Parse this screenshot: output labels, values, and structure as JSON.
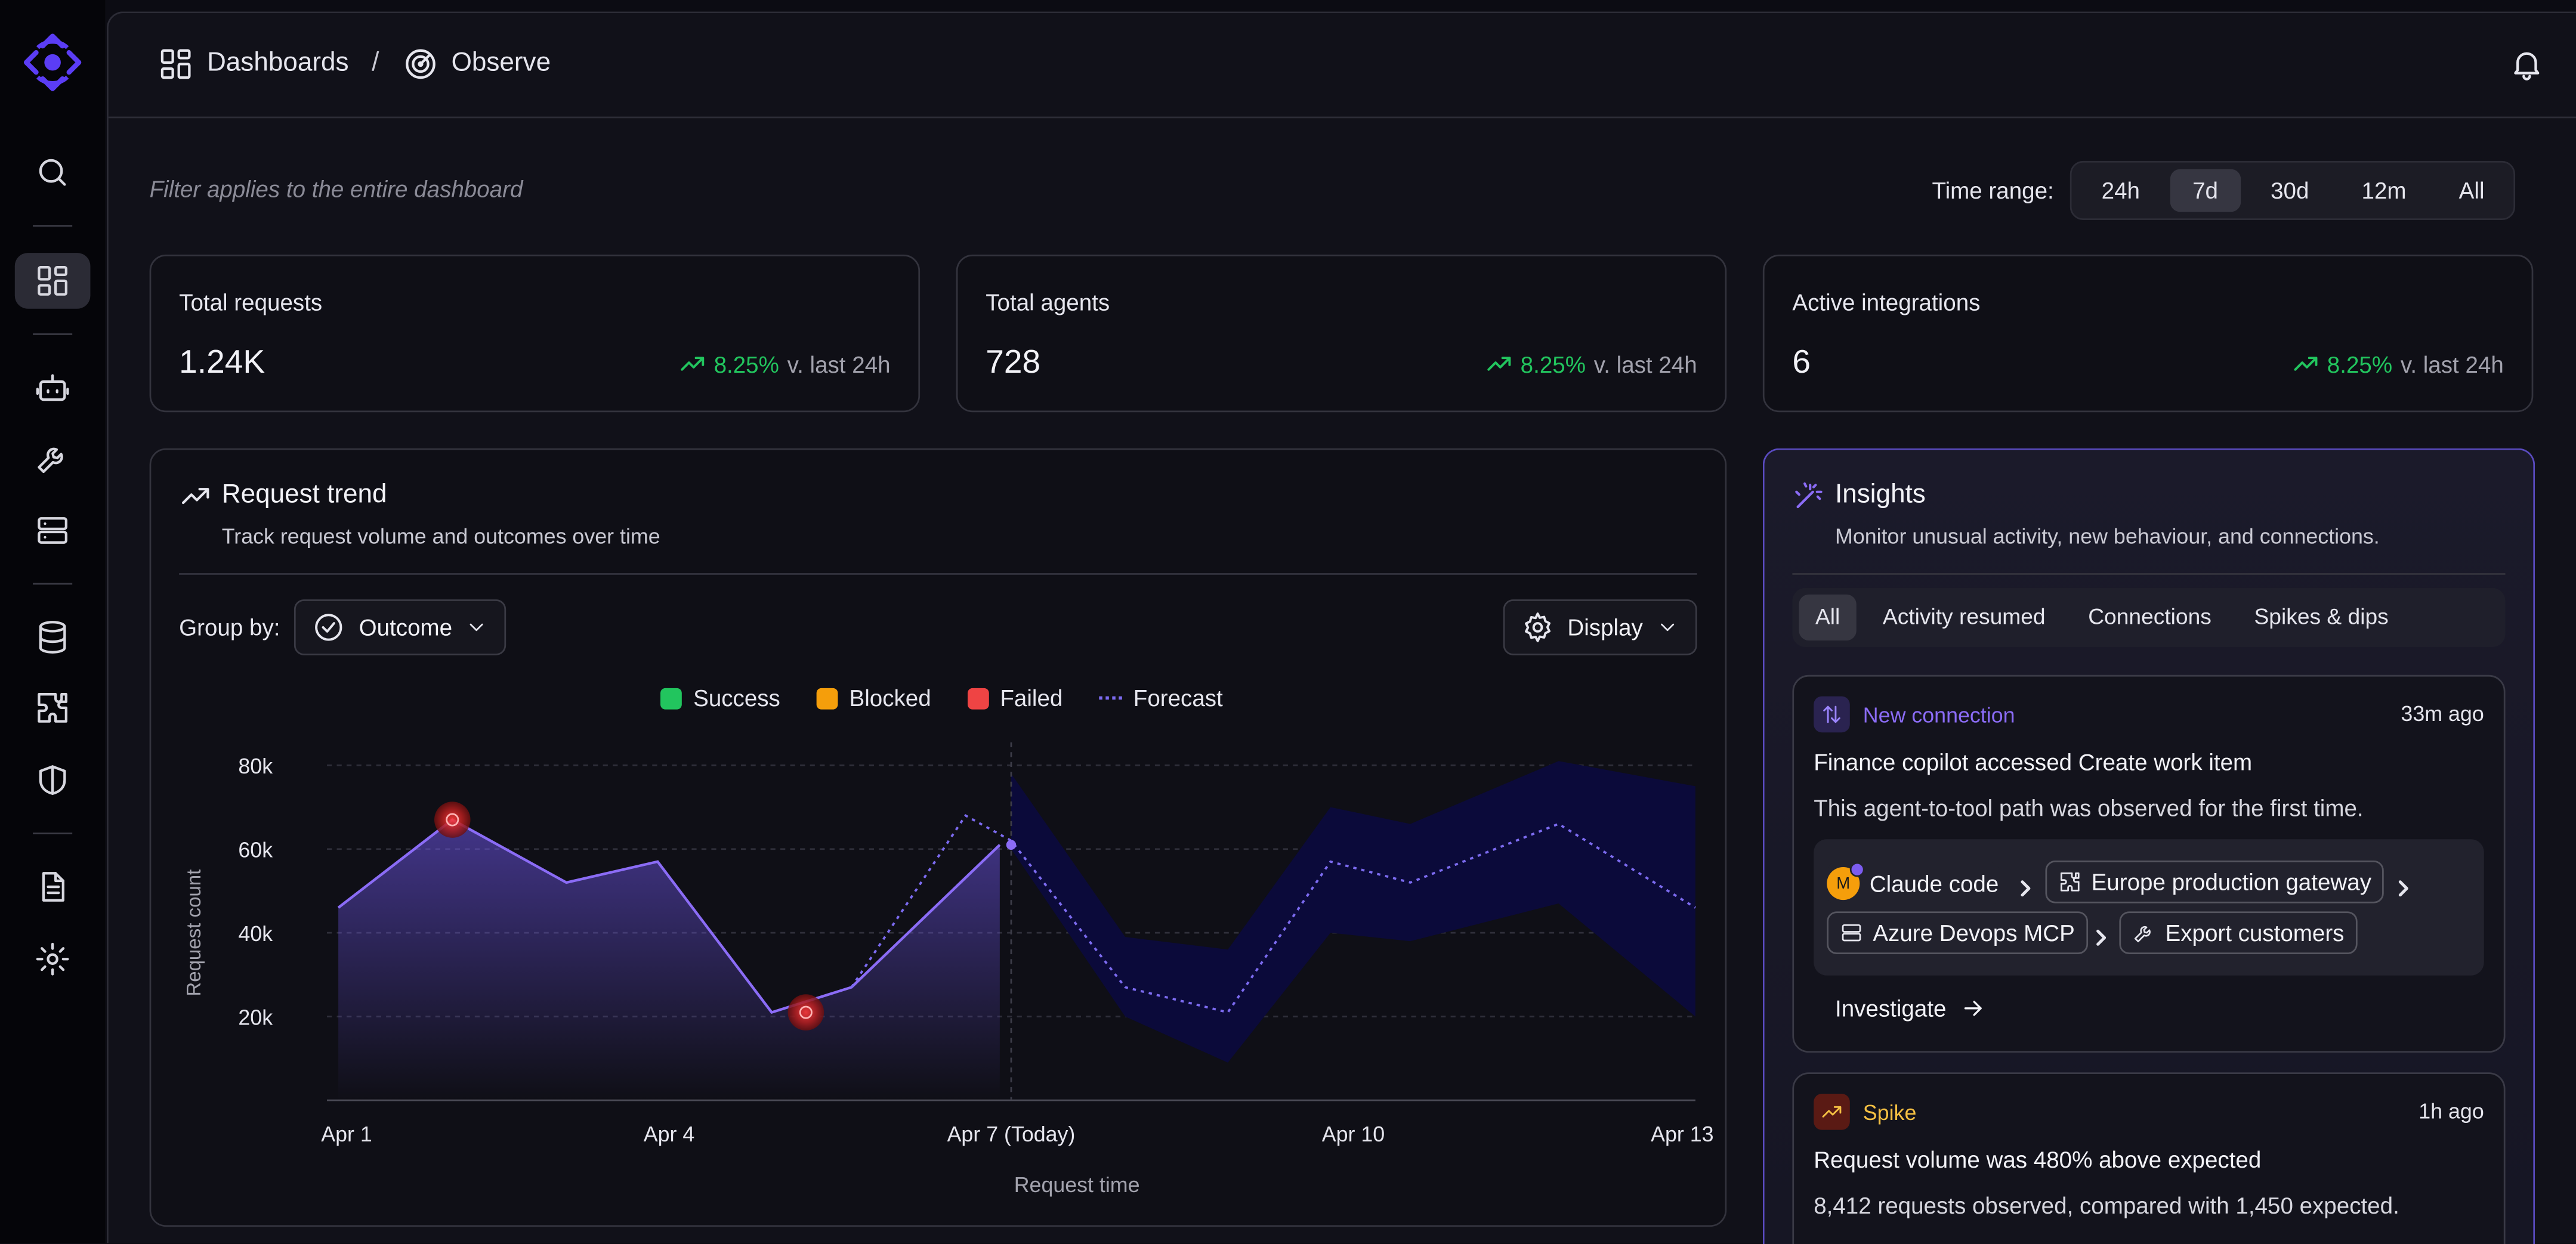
{
  "breadcrumb": {
    "root": "Dashboards",
    "separator": "/",
    "current": "Observe"
  },
  "filter_note": "Filter applies to the entire dashboard",
  "time_range": {
    "label": "Time range:",
    "options": [
      "24h",
      "7d",
      "30d",
      "12m",
      "All"
    ],
    "selected": "7d"
  },
  "stats": [
    {
      "title": "Total requests",
      "value": "1.24K",
      "delta": "8.25%",
      "compare": "v. last 24h"
    },
    {
      "title": "Total agents",
      "value": "728",
      "delta": "8.25%",
      "compare": "v. last 24h"
    },
    {
      "title": "Active integrations",
      "value": "6",
      "delta": "8.25%",
      "compare": "v. last 24h"
    }
  ],
  "trend": {
    "title": "Request trend",
    "subtitle": "Track request volume and outcomes over time",
    "group_by_label": "Group by:",
    "group_by_value": "Outcome",
    "display_label": "Display",
    "legend": [
      "Success",
      "Blocked",
      "Failed",
      "Forecast"
    ]
  },
  "chart_data": {
    "type": "line",
    "xlabel": "Request time",
    "ylabel": "Request count",
    "x_ticks": [
      "Apr 1",
      "Apr 4",
      "Apr 7 (Today)",
      "Apr 10",
      "Apr 13"
    ],
    "y_ticks": [
      "20k",
      "40k",
      "60k",
      "80k"
    ],
    "ylim": [
      0,
      80000
    ],
    "xlim": [
      1,
      13
    ],
    "today": 7,
    "grid": true,
    "colors": {
      "success": "#22c55e",
      "blocked": "#f59e0b",
      "failed": "#ef4444",
      "forecast": "#7c6bf0",
      "actual_line": "#8b6cf6",
      "band": "#0b0a3a"
    },
    "series": [
      {
        "name": "Success",
        "x": [
          1.1,
          2.1,
          3.1,
          3.9,
          4.9,
          5.6,
          6.9
        ],
        "values": [
          46000,
          67000,
          52000,
          57000,
          21000,
          27000,
          61000
        ]
      },
      {
        "name": "Forecast",
        "x": [
          5.6,
          6.6,
          7.0,
          8.0,
          8.9,
          9.8,
          10.5,
          11.8,
          13.0
        ],
        "values": [
          27000,
          68000,
          62000,
          27000,
          21000,
          57000,
          52000,
          66000,
          46000
        ]
      }
    ],
    "forecast_band": {
      "x": [
        7.0,
        8.0,
        8.9,
        9.8,
        10.5,
        11.8,
        13.0
      ],
      "upper": [
        78000,
        39000,
        36000,
        70000,
        66000,
        81000,
        75000
      ],
      "lower": [
        60000,
        20000,
        9000,
        40000,
        38000,
        47000,
        20000
      ]
    },
    "anomalies": [
      {
        "x": 2.1,
        "y": 67000
      },
      {
        "x": 5.2,
        "y": 21000
      }
    ]
  },
  "insights": {
    "title": "Insights",
    "subtitle": "Monitor unusual activity, new behaviour, and connections.",
    "tabs": [
      "All",
      "Activity resumed",
      "Connections",
      "Spikes & dips"
    ],
    "selected_tab": "All",
    "cards": [
      {
        "tag": "New connection",
        "tag_color": "#8b6cf6",
        "time": "33m ago",
        "title": "Finance copilot accessed Create work item",
        "description": "This agent-to-tool path was observed for the first time.",
        "avatar_initial": "M",
        "path": [
          "Claude code",
          "Europe production gateway",
          "Azure Devops MCP",
          "Export customers"
        ],
        "action": "Investigate"
      },
      {
        "tag": "Spike",
        "tag_color": "#f5c043",
        "time": "1h ago",
        "title": "Request volume was 480% above expected",
        "description": "8,412 requests observed, compared with 1,450 expected."
      }
    ]
  }
}
